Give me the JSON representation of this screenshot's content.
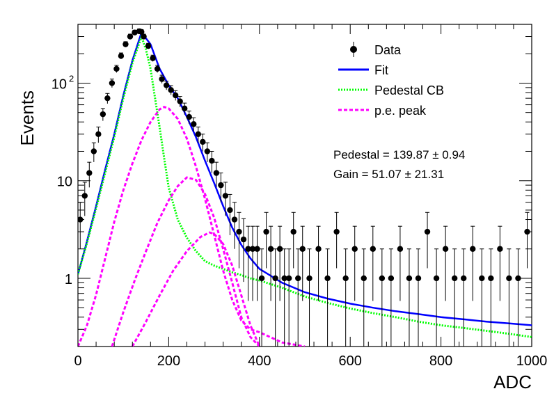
{
  "chart_data": {
    "type": "scatter",
    "xlabel": "ADC",
    "ylabel": "Events",
    "xlim": [
      0,
      1000
    ],
    "ylim": [
      0.2,
      400
    ],
    "yscale": "log",
    "x_ticks": [
      0,
      200,
      400,
      600,
      800,
      1000
    ],
    "y_ticks": [
      {
        "value": 1,
        "label": "1"
      },
      {
        "value": 10,
        "label": "10"
      },
      {
        "value": 100,
        "label": "10",
        "exp": "2"
      }
    ],
    "grid": false,
    "legend_position": "top-right",
    "legend": [
      {
        "label": "Data",
        "style": "marker"
      },
      {
        "label": "Fit",
        "style": "line",
        "color": "#0000ff"
      },
      {
        "label": "Pedestal CB",
        "style": "dotted",
        "color": "#00ff00"
      },
      {
        "label": "p.e. peak",
        "style": "dashed",
        "color": "#ff00ff"
      }
    ],
    "annotations": {
      "pedestal": "Pedestal = 139.87 ± 0.94",
      "gain": "Gain = 51.07 ± 21.31"
    },
    "fit_params": {
      "pedestal": 139.87,
      "pedestal_err": 0.94,
      "gain": 51.07,
      "gain_err": 21.31
    },
    "series": [
      {
        "name": "Data",
        "color": "#000000",
        "x": [
          5,
          15,
          25,
          35,
          45,
          55,
          65,
          75,
          85,
          95,
          105,
          115,
          125,
          135,
          140,
          145,
          155,
          165,
          175,
          185,
          195,
          205,
          215,
          225,
          235,
          245,
          255,
          265,
          275,
          285,
          295,
          305,
          315,
          325,
          335,
          345,
          355,
          365,
          375,
          385,
          395,
          405,
          415,
          425,
          435,
          445,
          455,
          465,
          475,
          485,
          495,
          510,
          530,
          550,
          570,
          590,
          610,
          630,
          650,
          670,
          690,
          710,
          730,
          750,
          770,
          790,
          810,
          830,
          850,
          870,
          890,
          910,
          930,
          950,
          970,
          990
        ],
        "y": [
          4,
          7,
          12,
          20,
          30,
          48,
          70,
          100,
          140,
          190,
          250,
          300,
          330,
          340,
          335,
          300,
          240,
          180,
          140,
          110,
          95,
          85,
          75,
          65,
          55,
          45,
          38,
          30,
          25,
          20,
          16,
          12,
          9,
          7,
          5,
          4,
          3,
          2.5,
          2,
          2,
          2,
          1,
          3,
          2,
          1,
          2,
          1,
          1,
          3,
          1,
          2,
          1,
          2,
          1,
          3,
          1,
          2,
          1,
          2,
          1,
          1,
          2,
          1,
          1,
          3,
          1,
          2,
          1,
          1,
          2,
          1,
          1,
          2,
          1,
          1,
          3
        ]
      },
      {
        "name": "Fit",
        "color": "#0000ff",
        "x": [
          0,
          20,
          40,
          60,
          80,
          100,
          120,
          140,
          160,
          180,
          200,
          220,
          240,
          260,
          280,
          300,
          320,
          340,
          360,
          380,
          400,
          450,
          500,
          550,
          600,
          650,
          700,
          750,
          800,
          850,
          900,
          950,
          1000
        ],
        "y": [
          1.1,
          2.4,
          5.5,
          13,
          30,
          75,
          170,
          330,
          250,
          140,
          95,
          70,
          45,
          28,
          16,
          9.5,
          5.5,
          3.3,
          2.2,
          1.6,
          1.25,
          0.9,
          0.72,
          0.62,
          0.55,
          0.5,
          0.46,
          0.43,
          0.4,
          0.38,
          0.36,
          0.345,
          0.33
        ]
      },
      {
        "name": "Pedestal CB",
        "color": "#00ff00",
        "x": [
          0,
          20,
          40,
          60,
          80,
          100,
          120,
          140,
          150,
          160,
          170,
          180,
          190,
          200,
          220,
          240,
          260,
          280,
          300,
          320,
          340,
          360,
          380,
          400,
          450,
          500,
          550,
          600,
          650,
          700,
          750,
          800,
          850,
          900,
          950,
          1000
        ],
        "y": [
          1.1,
          2.3,
          5.2,
          12,
          28,
          70,
          160,
          300,
          220,
          140,
          70,
          35,
          17,
          8.5,
          4,
          2.6,
          1.9,
          1.5,
          1.35,
          1.25,
          1.15,
          1.08,
          1.0,
          0.95,
          0.8,
          0.65,
          0.56,
          0.49,
          0.44,
          0.4,
          0.36,
          0.33,
          0.31,
          0.29,
          0.27,
          0.25
        ]
      },
      {
        "name": "p.e. peak 1",
        "color": "#ff00ff",
        "x": [
          0,
          20,
          40,
          60,
          80,
          100,
          120,
          140,
          160,
          180,
          190,
          200,
          220,
          240,
          260,
          280,
          300,
          320,
          340,
          360,
          380,
          400,
          450,
          500
        ],
        "y": [
          0.2,
          0.33,
          0.68,
          1.6,
          3.8,
          8,
          15,
          26,
          40,
          54,
          57,
          55,
          43,
          27,
          14,
          6.5,
          2.8,
          1.2,
          0.6,
          0.37,
          0.3,
          0.28,
          0.22,
          0.2
        ]
      },
      {
        "name": "p.e. peak 2",
        "color": "#ff00ff",
        "x": [
          75,
          100,
          125,
          150,
          175,
          200,
          220,
          240,
          260,
          280,
          300,
          320,
          340,
          360,
          380,
          400
        ],
        "y": [
          0.2,
          0.45,
          0.95,
          1.9,
          3.7,
          6.3,
          8.8,
          10.8,
          10.2,
          7.3,
          4.2,
          2,
          0.9,
          0.4,
          0.25,
          0.2
        ]
      },
      {
        "name": "p.e. peak 3",
        "color": "#ff00ff",
        "x": [
          120,
          150,
          180,
          210,
          240,
          270,
          290,
          300,
          320,
          340,
          360,
          380,
          400
        ],
        "y": [
          0.2,
          0.36,
          0.67,
          1.2,
          1.9,
          2.65,
          2.95,
          2.85,
          2.25,
          1.35,
          0.67,
          0.33,
          0.2
        ]
      }
    ]
  }
}
